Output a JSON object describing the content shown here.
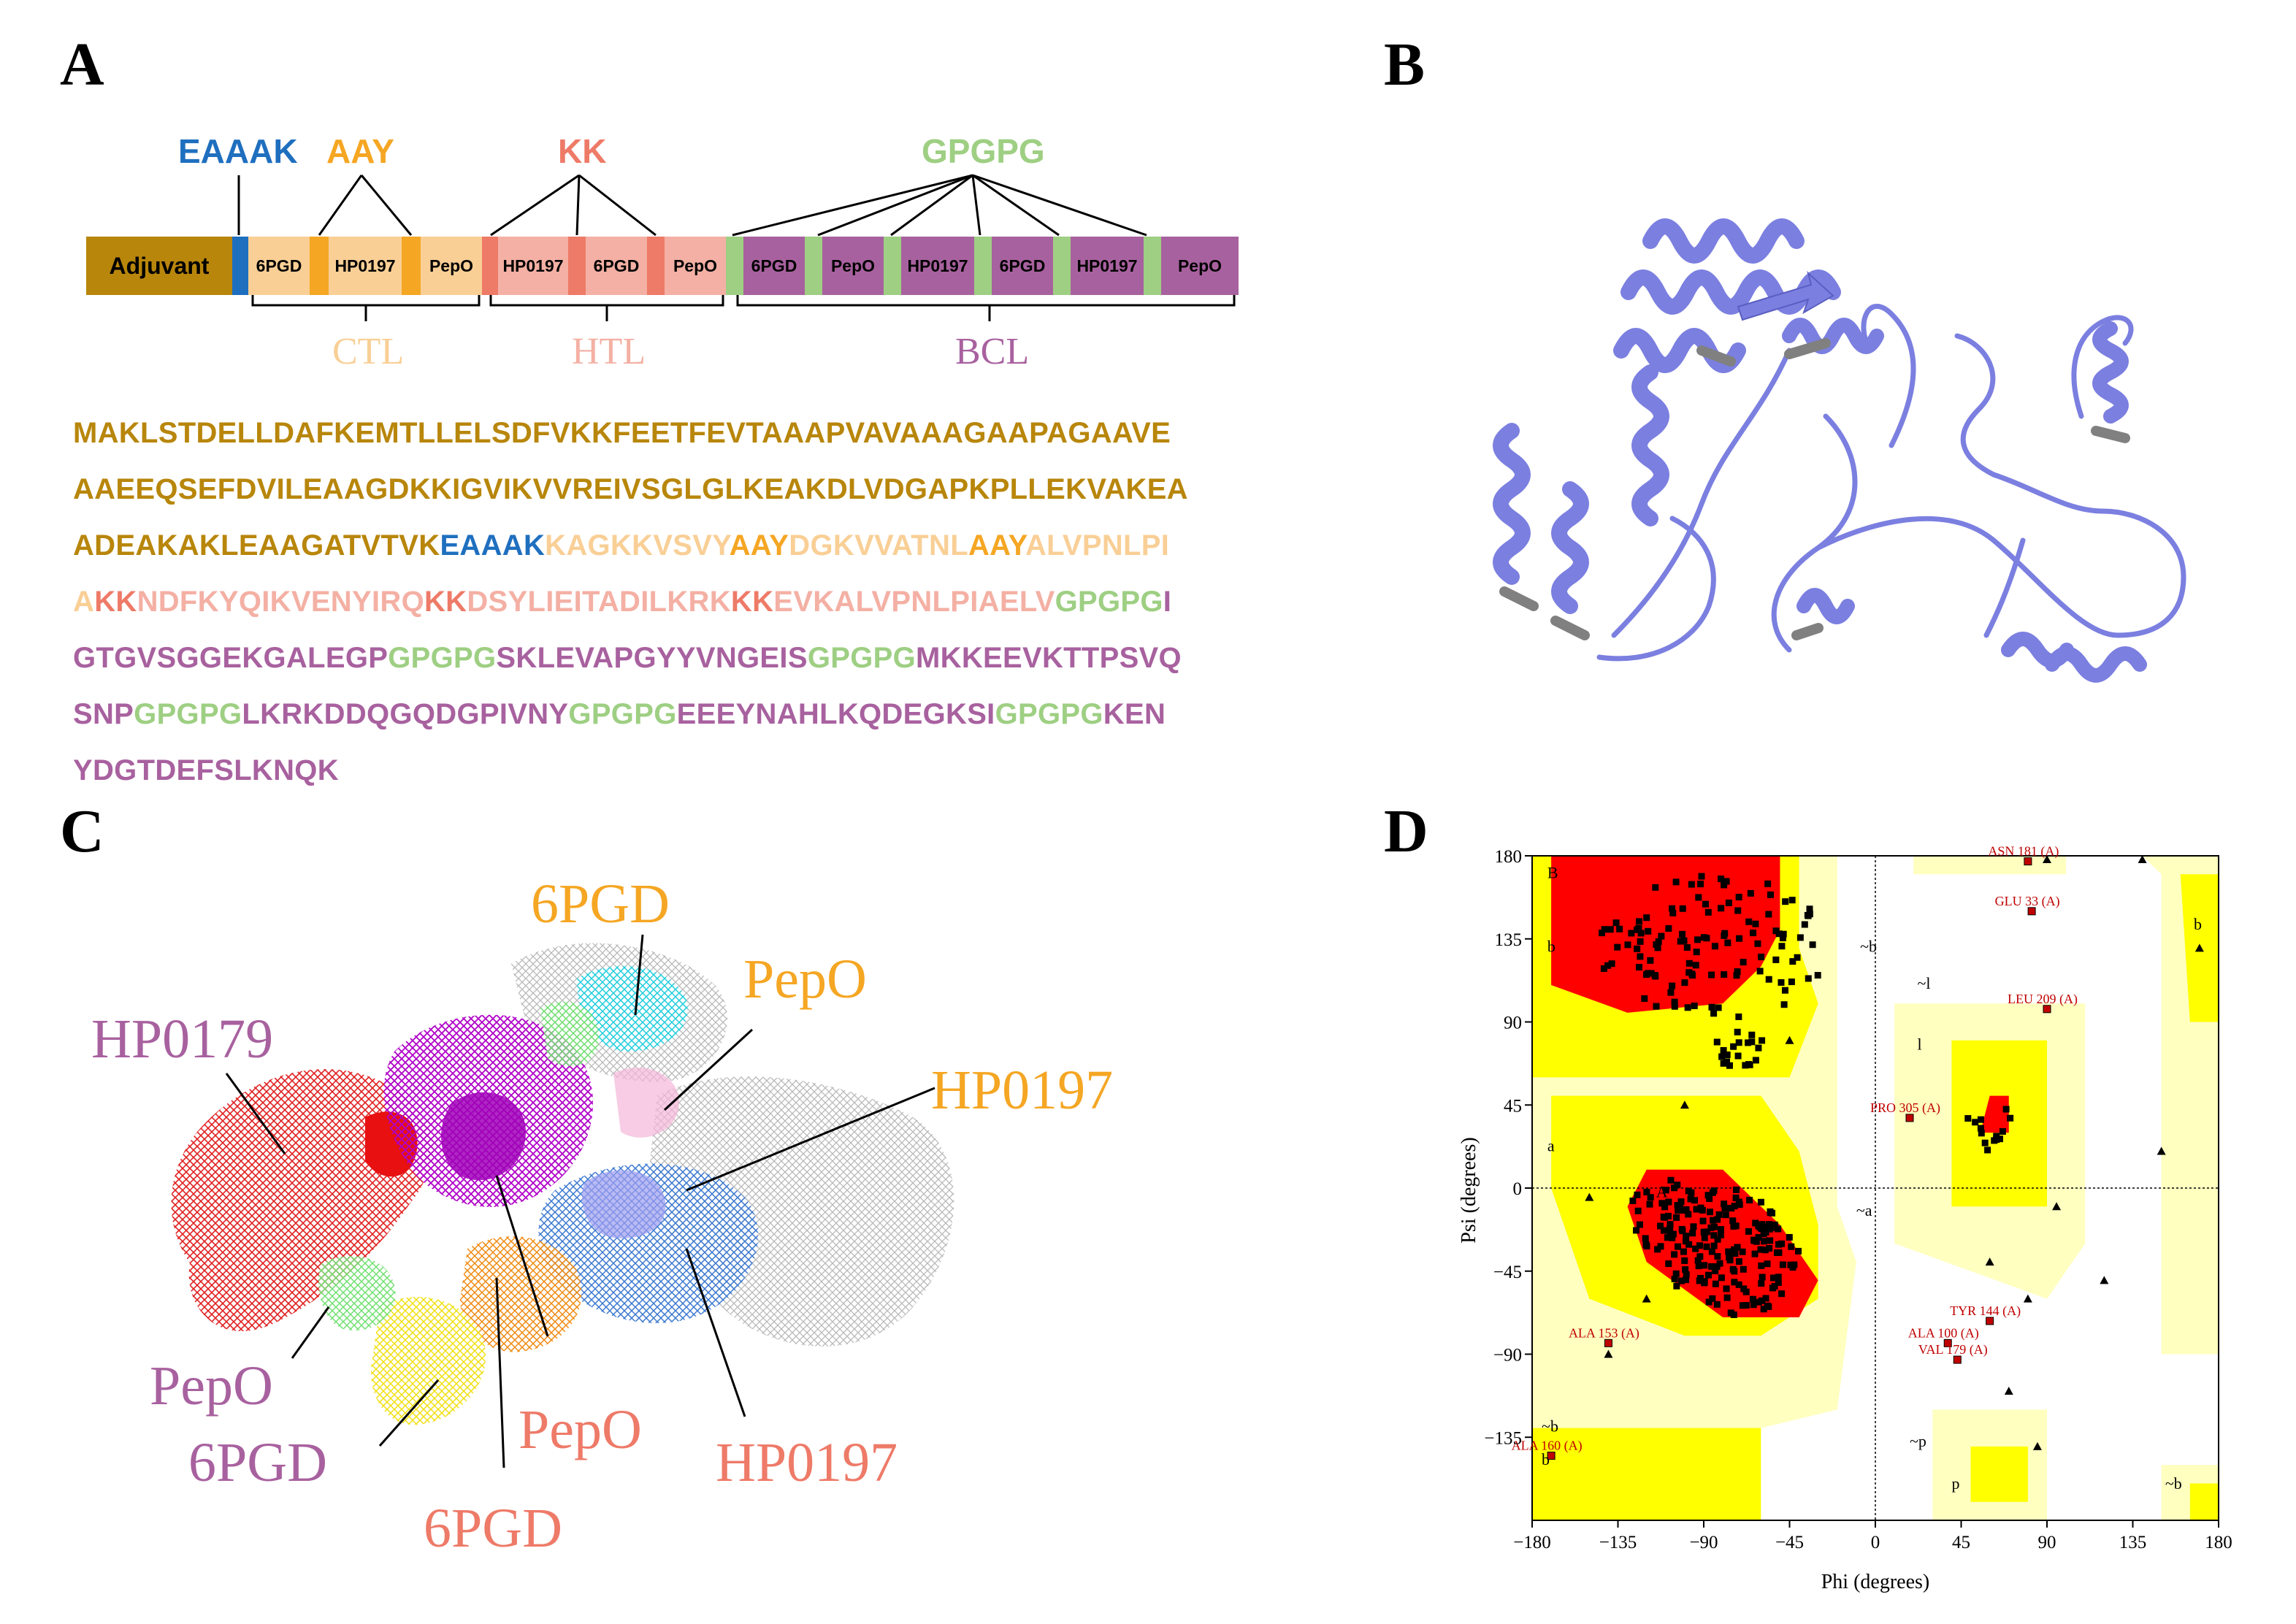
{
  "panels": {
    "a": "A",
    "b": "B",
    "c": "C",
    "d": "D"
  },
  "panel_a": {
    "linkers": {
      "eaaak": "EAAAK",
      "aay": "AAY",
      "kk": "KK",
      "gpgpg": "GPGPG"
    },
    "segments": {
      "adjuvant": "Adjuvant",
      "ctl_6pgd": "6PGD",
      "ctl_hp0197": "HP0197",
      "ctl_pepo": "PepO",
      "htl_hp0197": "HP0197",
      "htl_6pgd": "6PGD",
      "htl_pepo": "PepO",
      "bcl_6pgd_1": "6PGD",
      "bcl_pepo": "PepO",
      "bcl_hp0197_1": "HP0197",
      "bcl_6pgd_2": "6PGD",
      "bcl_hp0197_2": "HP0197",
      "bcl_pepo_2": "PepO"
    },
    "groups": {
      "ctl": "CTL",
      "htl": "HTL",
      "bcl": "BCL"
    },
    "colors": {
      "adjuvant": "#b8860b",
      "eaaak": "#1f6fbf",
      "aay": "#f5a623",
      "ctl": "#f9cf96",
      "kk": "#ee7a68",
      "htl": "#f4b0a4",
      "gpgpg": "#9ecf83",
      "bcl": "#a8619f"
    },
    "sequence": {
      "l1": "MAKLSTDELLDAFKEMTLLELSDFVKKFEETFEVTAAAPVAVAAAGAAPAGAAVE",
      "l2": "AAEEQSEFDVILEAAGDKKIGVIKVVREIVSGLGLKEAKDLVDGAPKPLLEKVAKEA",
      "l3_adj": "ADEAKAKLEAAGATVTVK",
      "l3_eaaak": "EAAAK",
      "l3_ctl1": "KAGKKVSVY",
      "l3_aay1": "AAY",
      "l3_ctl2": "DGKVVATNL",
      "l3_aay2": "AAY",
      "l3_ctl3": "ALVPNLPI",
      "l4_ctl": "A",
      "l4_kk1": "KK",
      "l4_htl1": "NDFKYQIKVENYIRQ",
      "l4_kk2": "KK",
      "l4_htl2": "DSYLIEITADILKRK",
      "l4_kk3": "KK",
      "l4_htl3": "EVKALVPNLPIAELV",
      "l4_g": "GPGPG",
      "l4_bcl": "I",
      "l5_bcl1": "GTGVSGGEKGALEGP",
      "l5_g1": "GPGPG",
      "l5_bcl2": "SKLEVAPGYYVNGEIS",
      "l5_g2": "GPGPG",
      "l5_bcl3": "MKKEEVKTTPSVQ",
      "l6_bcl1": "SNP",
      "l6_g1": "GPGPG",
      "l6_bcl2": "LKRKDDQGQDGPIVNY",
      "l6_g2": "GPGPG",
      "l6_bcl3": "EEEYNAHLKQDEGKSI",
      "l6_g3": "GPGPG",
      "l6_bcl4": "KEN",
      "l7_bcl": "YDGTDEFSLKNQK"
    }
  },
  "panel_b": {
    "protein_color": "#7b7fe0",
    "sheet_color": "#808080"
  },
  "panel_c": {
    "labels": {
      "hp0179": "HP0179",
      "pepo_left": "PepO",
      "sixpgd_left": "6PGD",
      "sixpgd_top": "6PGD",
      "pepo_top": "PepO",
      "hp0197_right": "HP0197",
      "pepo_center": "PepO",
      "sixpgd_bottom": "6PGD",
      "hp0197_bottom": "HP0197"
    },
    "colors": {
      "purple": "#a8619f",
      "orange": "#f5a623",
      "salmon": "#ee7a68"
    }
  },
  "chart_data": {
    "type": "scatter",
    "title": "",
    "xlabel": "Phi (degrees)",
    "ylabel": "Psi (degrees)",
    "xlim": [
      -180,
      180
    ],
    "ylim": [
      -180,
      180
    ],
    "xticks": [
      "−180",
      "−135",
      "−90",
      "−45",
      "0",
      "45",
      "90",
      "135",
      "180"
    ],
    "yticks": [
      "180",
      "135",
      "90",
      "45",
      "0",
      "−45",
      "−90",
      "−135"
    ],
    "region_labels": [
      "B",
      "b",
      "A",
      "a",
      "~b",
      "~l",
      "l",
      "~a",
      "~p",
      "p",
      "~b",
      "b",
      "~b",
      "b"
    ],
    "outliers": [
      {
        "label": "ASN 181 (A)",
        "phi": 80,
        "psi": 177
      },
      {
        "label": "GLU 33 (A)",
        "phi": 82,
        "psi": 150
      },
      {
        "label": "LEU 209 (A)",
        "phi": 90,
        "psi": 97
      },
      {
        "label": "PRO 305 (A)",
        "phi": 18,
        "psi": 38
      },
      {
        "label": "TYR 144 (A)",
        "phi": 60,
        "psi": -72
      },
      {
        "label": "ALA 100 (A)",
        "phi": 38,
        "psi": -84
      },
      {
        "label": "VAL 179 (A)",
        "phi": 43,
        "psi": -93
      },
      {
        "label": "ALA 153 (A)",
        "phi": -140,
        "psi": -84
      },
      {
        "label": "ALA 160 (A)",
        "phi": -170,
        "psi": -145
      }
    ],
    "colors": {
      "core": "#ff0000",
      "allowed": "#ffff00",
      "generous": "#ffffc0",
      "disallowed": "#ffffff",
      "points": "#000000",
      "outlier_points": "#c00000"
    }
  }
}
